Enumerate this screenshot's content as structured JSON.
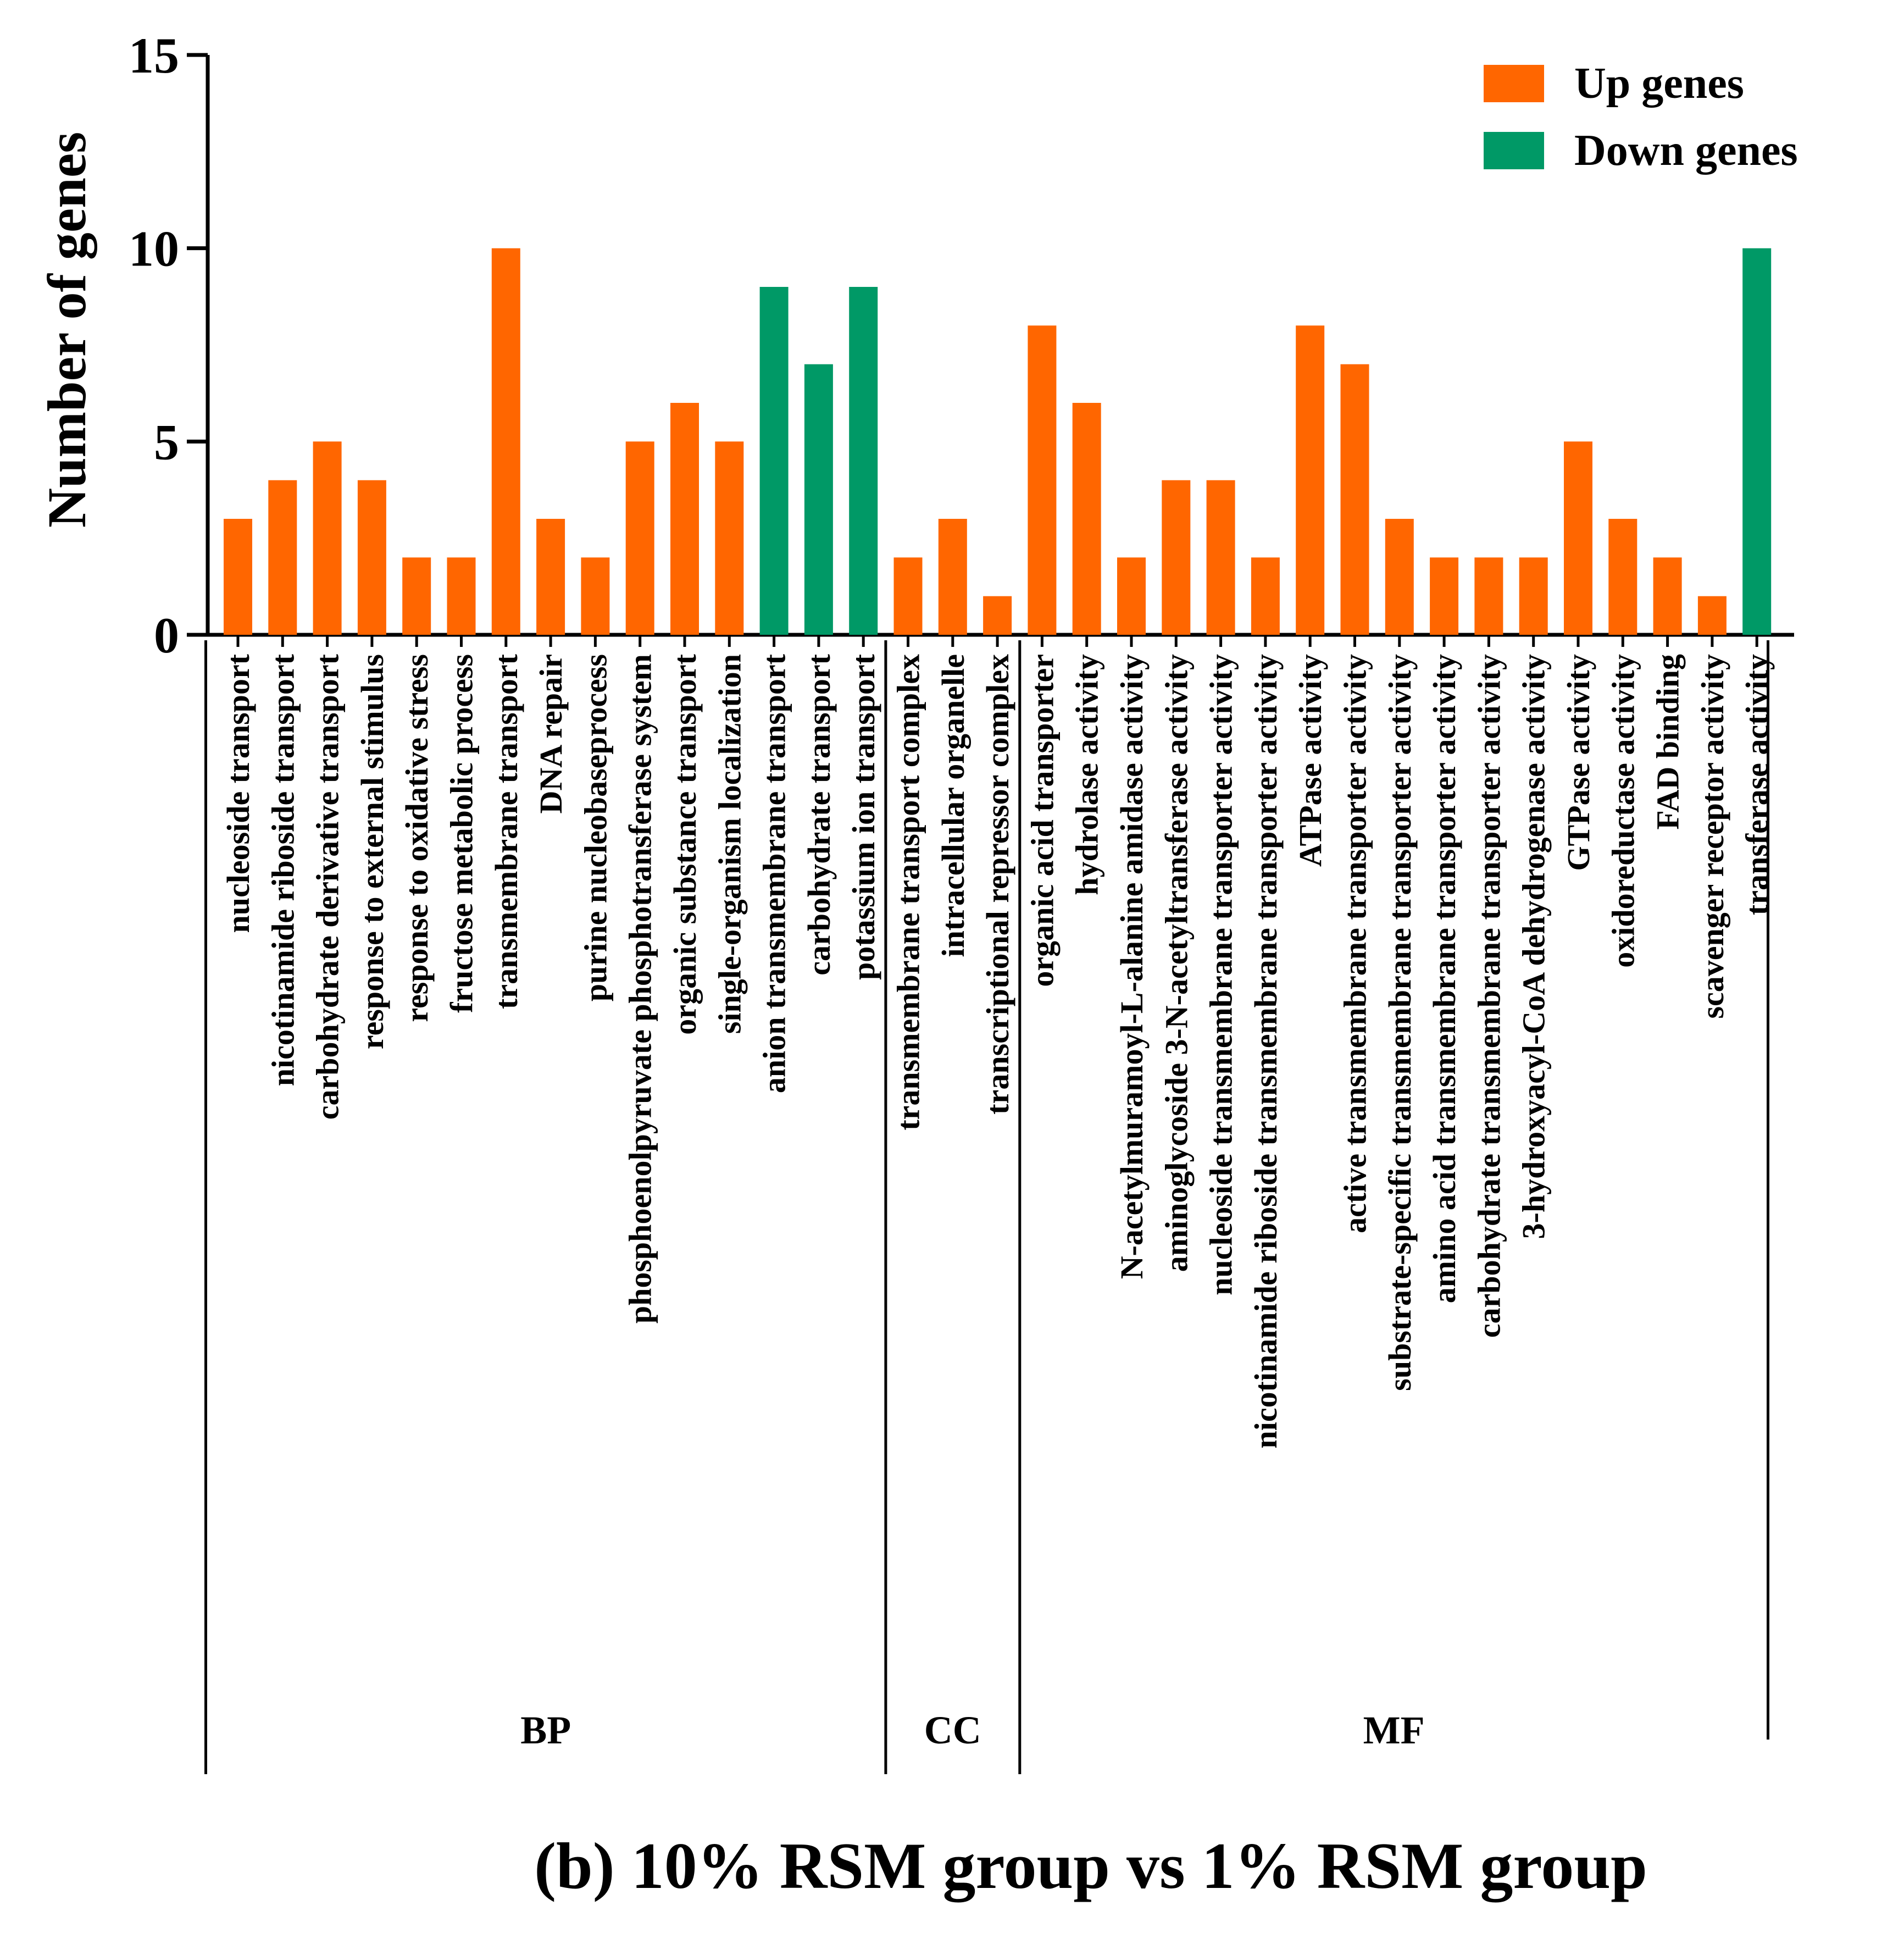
{
  "chart_data": {
    "type": "bar",
    "title": "(b) 10% RSM group vs 1% RSM group",
    "xlabel": "",
    "ylabel": "Number of genes",
    "ylim": [
      0,
      15
    ],
    "yticks": [
      "0",
      "5",
      "10",
      "15"
    ],
    "legend_position": "top-right",
    "legend": [
      {
        "name": "Up genes",
        "color": "#FF6600"
      },
      {
        "name": "Down genes",
        "color": "#009966"
      }
    ],
    "groups": [
      {
        "label": "BP",
        "count": 15
      },
      {
        "label": "CC",
        "count": 3
      },
      {
        "label": "MF",
        "count": 17
      }
    ],
    "categories": [
      "nucleoside transport",
      "nicotinamide riboside transport",
      "carbohydrate derivative transport",
      "response to external stimulus",
      "response to oxidative stress",
      "fructose metabolic process",
      "transmembrane transport",
      "DNA repair",
      "purine nucleobaseprocess",
      "phosphoenolpyruvate phosphotransferase system",
      "organic substance transport",
      "single-organism localization",
      "anion transmembrane transport",
      "carbohydrate transport",
      "potassium ion transport",
      "transmembrane transport complex",
      "intracellular organelle",
      "transcriptional repressor complex",
      "organic acid transporter",
      "hydrolase activity",
      "N-acetylmuramoyl-L-alanine amidase activity",
      "aminoglycoside 3-N-acetyltransferase activity",
      "nucleoside transmembrane transporter activity",
      "nicotinamide riboside transmembrane transporter activity",
      "ATPase activity",
      "active transmembrane transporter activity",
      "substrate-specific transmembrane transporter activity",
      "amino acid transmembrane transporter activity",
      "carbohydrate transmembrane transporter activity",
      "3-hydroxyacyl-CoA dehydrogenase activity",
      "GTPase activity",
      "oxidoreductase activity",
      "FAD binding",
      "scavenger receptor activity",
      "transferase activity"
    ],
    "values": [
      3,
      4,
      5,
      4,
      2,
      2,
      10,
      3,
      2,
      5,
      6,
      5,
      9,
      7,
      9,
      2,
      3,
      1,
      8,
      6,
      2,
      4,
      4,
      2,
      8,
      7,
      3,
      2,
      2,
      2,
      5,
      3,
      2,
      1,
      10
    ],
    "direction": [
      "Up genes",
      "Up genes",
      "Up genes",
      "Up genes",
      "Up genes",
      "Up genes",
      "Up genes",
      "Up genes",
      "Up genes",
      "Up genes",
      "Up genes",
      "Up genes",
      "Down genes",
      "Down genes",
      "Down genes",
      "Up genes",
      "Up genes",
      "Up genes",
      "Up genes",
      "Up genes",
      "Up genes",
      "Up genes",
      "Up genes",
      "Up genes",
      "Up genes",
      "Up genes",
      "Up genes",
      "Up genes",
      "Up genes",
      "Up genes",
      "Up genes",
      "Up genes",
      "Up genes",
      "Up genes",
      "Down genes"
    ]
  }
}
